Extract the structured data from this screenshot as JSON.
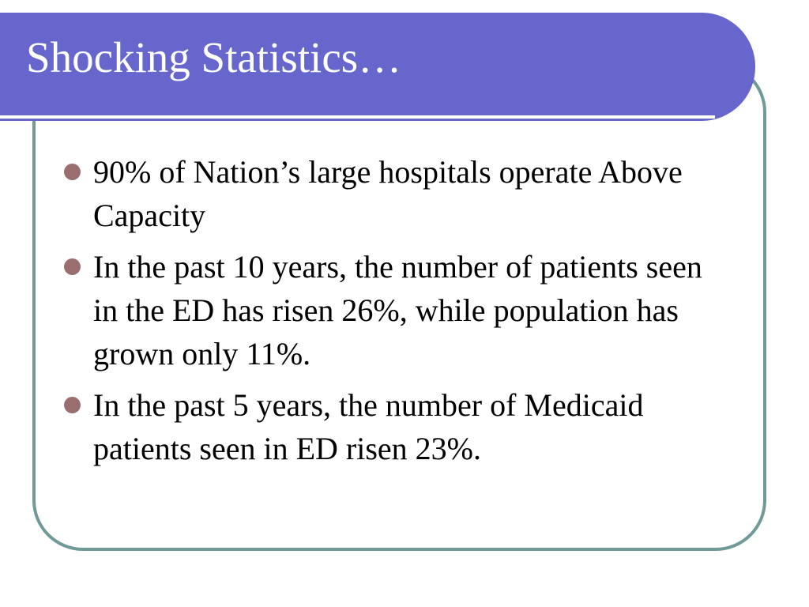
{
  "slide": {
    "title": "Shocking Statistics…",
    "bullets": [
      {
        "text": "90% of Nation’s large hospitals operate Above Capacity"
      },
      {
        "text": "In the past 10 years, the number of patients seen in the ED has risen 26%, while population has grown only 11%."
      },
      {
        "text": "In the past 5 years, the number of Medicaid patients seen in ED risen 23%."
      }
    ]
  },
  "colors": {
    "title_bar": "#6666cc",
    "frame_border": "#6f9a98",
    "bullet": "#9a6e6e",
    "title_text": "#ffffff",
    "body_text": "#000000"
  }
}
